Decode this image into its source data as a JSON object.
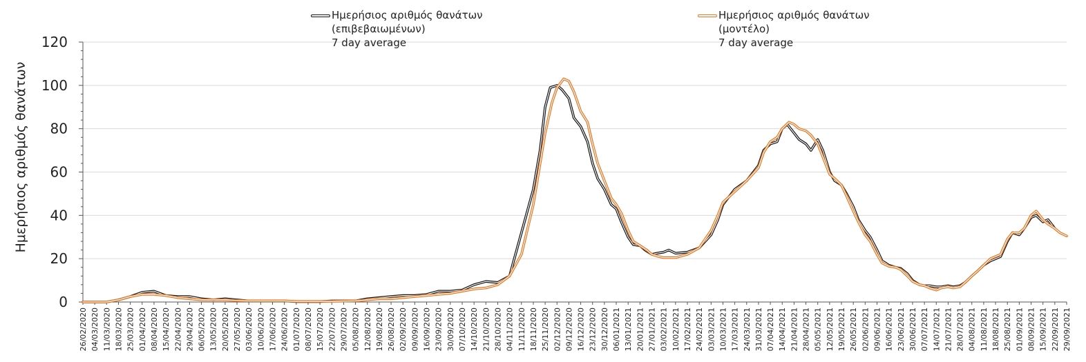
{
  "chart_data": {
    "type": "line",
    "ylabel": "Ημερήσιος αριθμός θανάτων",
    "xlabel": "",
    "ylim": [
      0,
      120
    ],
    "yticks": [
      "0",
      "20",
      "40",
      "60",
      "80",
      "100",
      "120"
    ],
    "grid": "horizontal",
    "legend_position": "top",
    "x_ticks": [
      "26/02/2020",
      "04/03/2020",
      "11/03/2020",
      "18/03/2020",
      "25/03/2020",
      "01/04/2020",
      "08/04/2020",
      "15/04/2020",
      "22/04/2020",
      "29/04/2020",
      "06/05/2020",
      "13/05/2020",
      "20/05/2020",
      "27/05/2020",
      "03/06/2020",
      "10/06/2020",
      "17/06/2020",
      "24/06/2020",
      "01/07/2020",
      "08/07/2020",
      "15/07/2020",
      "22/07/2020",
      "29/07/2020",
      "05/08/2020",
      "12/08/2020",
      "19/08/2020",
      "26/08/2020",
      "02/09/2020",
      "09/09/2020",
      "16/09/2020",
      "23/09/2020",
      "30/09/2020",
      "07/10/2020",
      "14/10/2020",
      "21/10/2020",
      "28/10/2020",
      "04/11/2020",
      "11/11/2020",
      "18/11/2020",
      "25/11/2020",
      "02/12/2020",
      "09/12/2020",
      "16/12/2020",
      "23/12/2020",
      "30/12/2020",
      "06/01/2021",
      "13/01/2021",
      "20/01/2021",
      "27/01/2021",
      "03/02/2021",
      "10/02/2021",
      "17/02/2021",
      "24/02/2021",
      "03/03/2021",
      "10/03/2021",
      "17/03/2021",
      "24/03/2021",
      "31/03/2021",
      "07/04/2021",
      "14/04/2021",
      "21/04/2021",
      "28/04/2021",
      "05/05/2021",
      "12/05/2021",
      "19/05/2021",
      "26/05/2021",
      "02/06/2021",
      "09/06/2021",
      "16/06/2021",
      "23/06/2021",
      "30/06/2021",
      "07/07/2021",
      "14/07/2021",
      "21/07/2021",
      "28/07/2021",
      "04/08/2021",
      "11/08/2021",
      "18/08/2021",
      "25/08/2021",
      "01/09/2021",
      "08/09/2021",
      "15/09/2021",
      "22/09/2021",
      "29/09/2021"
    ],
    "series": [
      {
        "name_lines": [
          "Ημερήσιος αριθμός θανάτων",
          "(επιβεβαιωμένων)",
          "7 day average"
        ],
        "color": "#111111",
        "style": "double-line black",
        "points": [
          [
            "26/02/2020",
            0
          ],
          [
            "11/03/2020",
            0
          ],
          [
            "18/03/2020",
            1
          ],
          [
            "25/03/2020",
            2.5
          ],
          [
            "01/04/2020",
            4.5
          ],
          [
            "08/04/2020",
            5
          ],
          [
            "15/04/2020",
            3
          ],
          [
            "22/04/2020",
            2.5
          ],
          [
            "29/04/2020",
            2.5
          ],
          [
            "06/05/2020",
            1.5
          ],
          [
            "13/05/2020",
            1
          ],
          [
            "20/05/2020",
            1.5
          ],
          [
            "27/05/2020",
            1
          ],
          [
            "03/06/2020",
            0.5
          ],
          [
            "10/06/2020",
            0.5
          ],
          [
            "17/06/2020",
            0.5
          ],
          [
            "24/06/2020",
            0.5
          ],
          [
            "01/07/2020",
            0.2
          ],
          [
            "08/07/2020",
            0.2
          ],
          [
            "15/07/2020",
            0.2
          ],
          [
            "22/07/2020",
            0.5
          ],
          [
            "29/07/2020",
            0.5
          ],
          [
            "05/08/2020",
            0.5
          ],
          [
            "12/08/2020",
            1.5
          ],
          [
            "19/08/2020",
            2
          ],
          [
            "26/08/2020",
            2.5
          ],
          [
            "02/09/2020",
            3
          ],
          [
            "09/09/2020",
            3
          ],
          [
            "16/09/2020",
            3.5
          ],
          [
            "23/09/2020",
            5
          ],
          [
            "30/09/2020",
            5
          ],
          [
            "07/10/2020",
            5.5
          ],
          [
            "14/10/2020",
            8
          ],
          [
            "21/10/2020",
            9.5
          ],
          [
            "28/10/2020",
            9
          ],
          [
            "04/11/2020",
            12
          ],
          [
            "11/11/2020",
            32
          ],
          [
            "18/11/2020",
            52
          ],
          [
            "22/11/2020",
            70
          ],
          [
            "25/11/2020",
            90
          ],
          [
            "28/11/2020",
            99
          ],
          [
            "02/12/2020",
            100
          ],
          [
            "05/12/2020",
            98
          ],
          [
            "09/12/2020",
            94
          ],
          [
            "12/12/2020",
            85
          ],
          [
            "16/12/2020",
            81
          ],
          [
            "20/12/2020",
            74
          ],
          [
            "23/12/2020",
            64
          ],
          [
            "26/12/2020",
            57
          ],
          [
            "30/12/2020",
            52
          ],
          [
            "03/01/2021",
            45
          ],
          [
            "06/01/2021",
            43
          ],
          [
            "09/01/2021",
            37
          ],
          [
            "13/01/2021",
            30
          ],
          [
            "16/01/2021",
            26.5
          ],
          [
            "20/01/2021",
            26
          ],
          [
            "23/01/2021",
            24
          ],
          [
            "27/01/2021",
            22
          ],
          [
            "30/01/2021",
            22.5
          ],
          [
            "03/02/2021",
            23
          ],
          [
            "06/02/2021",
            24
          ],
          [
            "10/02/2021",
            22.5
          ],
          [
            "17/02/2021",
            23
          ],
          [
            "24/02/2021",
            25
          ],
          [
            "03/03/2021",
            31
          ],
          [
            "07/03/2021",
            38
          ],
          [
            "10/03/2021",
            45
          ],
          [
            "17/03/2021",
            52
          ],
          [
            "24/03/2021",
            56
          ],
          [
            "31/03/2021",
            63
          ],
          [
            "03/04/2021",
            70
          ],
          [
            "07/04/2021",
            73
          ],
          [
            "11/04/2021",
            74
          ],
          [
            "14/04/2021",
            80
          ],
          [
            "17/04/2021",
            82
          ],
          [
            "21/04/2021",
            78
          ],
          [
            "24/04/2021",
            75
          ],
          [
            "28/04/2021",
            73
          ],
          [
            "01/05/2021",
            70
          ],
          [
            "05/05/2021",
            75
          ],
          [
            "08/05/2021",
            70
          ],
          [
            "12/05/2021",
            60
          ],
          [
            "15/05/2021",
            56
          ],
          [
            "19/05/2021",
            54
          ],
          [
            "22/05/2021",
            50
          ],
          [
            "26/05/2021",
            44
          ],
          [
            "29/05/2021",
            38
          ],
          [
            "02/06/2021",
            33
          ],
          [
            "05/06/2021",
            30
          ],
          [
            "09/06/2021",
            24
          ],
          [
            "12/06/2021",
            19
          ],
          [
            "16/06/2021",
            17
          ],
          [
            "20/06/2021",
            16
          ],
          [
            "23/06/2021",
            15.5
          ],
          [
            "27/06/2021",
            13
          ],
          [
            "30/06/2021",
            10
          ],
          [
            "04/07/2021",
            8
          ],
          [
            "07/07/2021",
            7.5
          ],
          [
            "10/07/2021",
            7.5
          ],
          [
            "14/07/2021",
            7
          ],
          [
            "17/07/2021",
            7
          ],
          [
            "21/07/2021",
            7.5
          ],
          [
            "24/07/2021",
            7
          ],
          [
            "28/07/2021",
            7.5
          ],
          [
            "31/07/2021",
            9
          ],
          [
            "04/08/2021",
            12
          ],
          [
            "07/08/2021",
            14
          ],
          [
            "11/08/2021",
            17
          ],
          [
            "15/08/2021",
            19
          ],
          [
            "18/08/2021",
            20
          ],
          [
            "21/08/2021",
            21
          ],
          [
            "25/08/2021",
            28
          ],
          [
            "28/08/2021",
            32
          ],
          [
            "01/09/2021",
            31
          ],
          [
            "04/09/2021",
            34
          ],
          [
            "08/09/2021",
            39
          ],
          [
            "11/09/2021",
            40
          ],
          [
            "15/09/2021",
            37
          ],
          [
            "18/09/2021",
            38
          ],
          [
            "22/09/2021",
            34
          ]
        ]
      },
      {
        "name_lines": [
          "Ημερήσιος αριθμός θανάτων",
          "(μοντέλο)",
          "7 day average"
        ],
        "color": "#e8731c",
        "style": "double-line orange",
        "points": [
          [
            "26/02/2020",
            0
          ],
          [
            "11/03/2020",
            0
          ],
          [
            "18/03/2020",
            1
          ],
          [
            "25/03/2020",
            2.5
          ],
          [
            "01/04/2020",
            3.5
          ],
          [
            "08/04/2020",
            3.5
          ],
          [
            "15/04/2020",
            3
          ],
          [
            "22/04/2020",
            2
          ],
          [
            "29/04/2020",
            1.5
          ],
          [
            "06/05/2020",
            1
          ],
          [
            "13/05/2020",
            1
          ],
          [
            "20/05/2020",
            1
          ],
          [
            "27/05/2020",
            0.7
          ],
          [
            "03/06/2020",
            0.5
          ],
          [
            "10/06/2020",
            0.5
          ],
          [
            "17/06/2020",
            0.5
          ],
          [
            "24/06/2020",
            0.5
          ],
          [
            "01/07/2020",
            0.3
          ],
          [
            "08/07/2020",
            0.3
          ],
          [
            "15/07/2020",
            0.3
          ],
          [
            "22/07/2020",
            0.3
          ],
          [
            "29/07/2020",
            0.4
          ],
          [
            "05/08/2020",
            0.5
          ],
          [
            "12/08/2020",
            1
          ],
          [
            "19/08/2020",
            1.5
          ],
          [
            "26/08/2020",
            1.5
          ],
          [
            "02/09/2020",
            2
          ],
          [
            "09/09/2020",
            2.5
          ],
          [
            "16/09/2020",
            3
          ],
          [
            "23/09/2020",
            3.5
          ],
          [
            "30/09/2020",
            4
          ],
          [
            "07/10/2020",
            5
          ],
          [
            "14/10/2020",
            6
          ],
          [
            "21/10/2020",
            6.5
          ],
          [
            "28/10/2020",
            8
          ],
          [
            "04/11/2020",
            12
          ],
          [
            "11/11/2020",
            22
          ],
          [
            "18/11/2020",
            45
          ],
          [
            "25/11/2020",
            78
          ],
          [
            "29/11/2020",
            92
          ],
          [
            "02/12/2020",
            99
          ],
          [
            "06/12/2020",
            103
          ],
          [
            "09/12/2020",
            102
          ],
          [
            "12/12/2020",
            97
          ],
          [
            "16/12/2020",
            88
          ],
          [
            "20/12/2020",
            83
          ],
          [
            "23/12/2020",
            73
          ],
          [
            "26/12/2020",
            64
          ],
          [
            "30/12/2020",
            56
          ],
          [
            "03/01/2021",
            48
          ],
          [
            "06/01/2021",
            45
          ],
          [
            "09/01/2021",
            41
          ],
          [
            "13/01/2021",
            33
          ],
          [
            "16/01/2021",
            28
          ],
          [
            "20/01/2021",
            26
          ],
          [
            "24/01/2021",
            24
          ],
          [
            "27/01/2021",
            22
          ],
          [
            "31/01/2021",
            21
          ],
          [
            "03/02/2021",
            20.5
          ],
          [
            "10/02/2021",
            20.5
          ],
          [
            "17/02/2021",
            22
          ],
          [
            "24/02/2021",
            25
          ],
          [
            "03/03/2021",
            33
          ],
          [
            "07/03/2021",
            40
          ],
          [
            "10/03/2021",
            46
          ],
          [
            "17/03/2021",
            51
          ],
          [
            "24/03/2021",
            56
          ],
          [
            "31/03/2021",
            62
          ],
          [
            "03/04/2021",
            69
          ],
          [
            "07/04/2021",
            74
          ],
          [
            "11/04/2021",
            76
          ],
          [
            "14/04/2021",
            80
          ],
          [
            "18/04/2021",
            83
          ],
          [
            "21/04/2021",
            82
          ],
          [
            "24/04/2021",
            80
          ],
          [
            "28/04/2021",
            79
          ],
          [
            "01/05/2021",
            77
          ],
          [
            "05/05/2021",
            73
          ],
          [
            "08/05/2021",
            67
          ],
          [
            "12/05/2021",
            59
          ],
          [
            "15/05/2021",
            57
          ],
          [
            "19/05/2021",
            54
          ],
          [
            "22/05/2021",
            49
          ],
          [
            "26/05/2021",
            42
          ],
          [
            "29/05/2021",
            37
          ],
          [
            "02/06/2021",
            31
          ],
          [
            "05/06/2021",
            28
          ],
          [
            "09/06/2021",
            22
          ],
          [
            "12/06/2021",
            18
          ],
          [
            "16/06/2021",
            16.5
          ],
          [
            "20/06/2021",
            16
          ],
          [
            "23/06/2021",
            15
          ],
          [
            "27/06/2021",
            12
          ],
          [
            "30/06/2021",
            9.5
          ],
          [
            "04/07/2021",
            8
          ],
          [
            "07/07/2021",
            7.5
          ],
          [
            "10/07/2021",
            6.5
          ],
          [
            "14/07/2021",
            5.5
          ],
          [
            "17/07/2021",
            6.5
          ],
          [
            "21/07/2021",
            7
          ],
          [
            "24/07/2021",
            6.5
          ],
          [
            "28/07/2021",
            7
          ],
          [
            "31/07/2021",
            9
          ],
          [
            "04/08/2021",
            12
          ],
          [
            "07/08/2021",
            14
          ],
          [
            "11/08/2021",
            17
          ],
          [
            "15/08/2021",
            20
          ],
          [
            "18/08/2021",
            21
          ],
          [
            "21/08/2021",
            22
          ],
          [
            "25/08/2021",
            29
          ],
          [
            "28/08/2021",
            32
          ],
          [
            "01/09/2021",
            32
          ],
          [
            "04/09/2021",
            34
          ],
          [
            "08/09/2021",
            40
          ],
          [
            "11/09/2021",
            42
          ],
          [
            "15/09/2021",
            38
          ],
          [
            "18/09/2021",
            36
          ],
          [
            "22/09/2021",
            34
          ],
          [
            "25/09/2021",
            32
          ],
          [
            "29/09/2021",
            30.5
          ]
        ]
      }
    ]
  }
}
